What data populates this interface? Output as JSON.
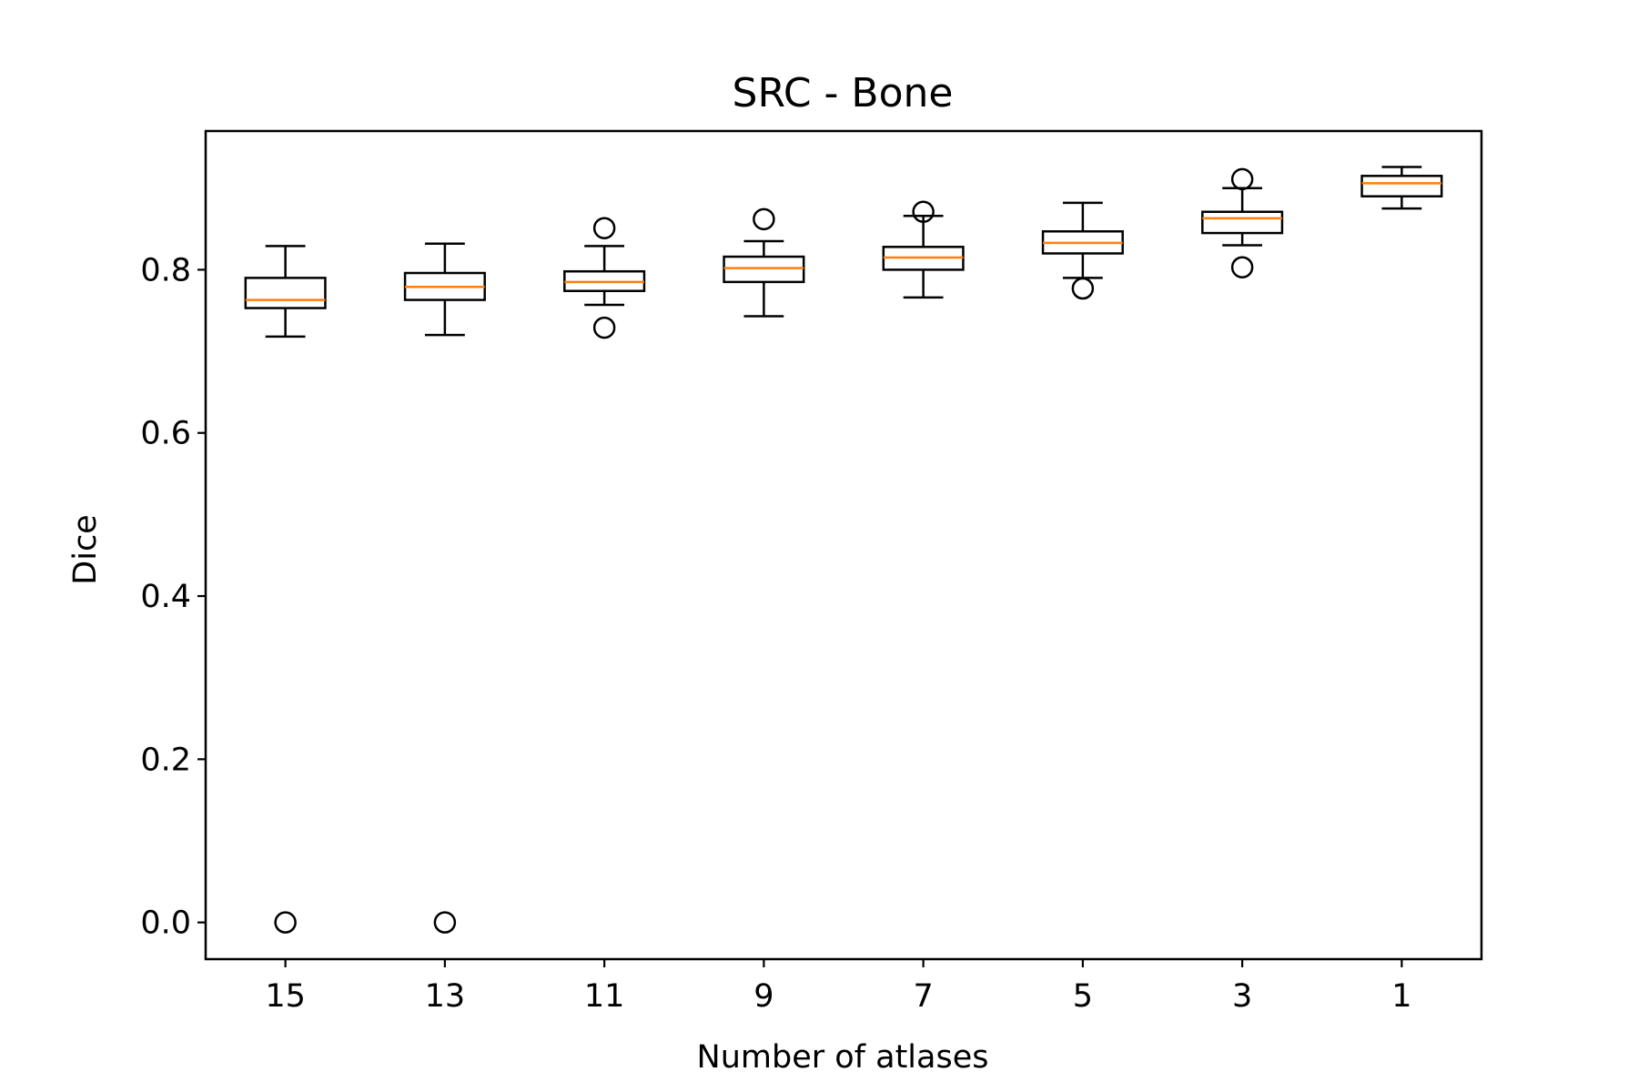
{
  "chart_data": {
    "type": "box",
    "title": "SRC - Bone",
    "xlabel": "Number of atlases",
    "ylabel": "Dice",
    "ylim": [
      -0.045,
      0.97
    ],
    "yticks": [
      0.0,
      0.2,
      0.4,
      0.6,
      0.8
    ],
    "yticklabels": [
      "0.0",
      "0.2",
      "0.4",
      "0.6",
      "0.8"
    ],
    "categories": [
      "15",
      "13",
      "11",
      "9",
      "7",
      "5",
      "3",
      "1"
    ],
    "grid": false,
    "colors": {
      "box": "#000000",
      "median": "#ff7f0e",
      "background": "#ffffff"
    },
    "boxes": [
      {
        "label": "15",
        "whisker_low": 0.718,
        "q1": 0.753,
        "median": 0.763,
        "q3": 0.79,
        "whisker_high": 0.829,
        "fliers": [
          0.0
        ]
      },
      {
        "label": "13",
        "whisker_low": 0.72,
        "q1": 0.763,
        "median": 0.779,
        "q3": 0.796,
        "whisker_high": 0.832,
        "fliers": [
          0.0
        ]
      },
      {
        "label": "11",
        "whisker_low": 0.757,
        "q1": 0.774,
        "median": 0.785,
        "q3": 0.798,
        "whisker_high": 0.829,
        "fliers": [
          0.851,
          0.729
        ]
      },
      {
        "label": "9",
        "whisker_low": 0.743,
        "q1": 0.785,
        "median": 0.802,
        "q3": 0.816,
        "whisker_high": 0.835,
        "fliers": [
          0.862
        ]
      },
      {
        "label": "7",
        "whisker_low": 0.766,
        "q1": 0.8,
        "median": 0.815,
        "q3": 0.828,
        "whisker_high": 0.866,
        "fliers": [
          0.871
        ]
      },
      {
        "label": "5",
        "whisker_low": 0.79,
        "q1": 0.82,
        "median": 0.833,
        "q3": 0.847,
        "whisker_high": 0.882,
        "fliers": [
          0.777
        ]
      },
      {
        "label": "3",
        "whisker_low": 0.83,
        "q1": 0.845,
        "median": 0.863,
        "q3": 0.871,
        "whisker_high": 0.9,
        "fliers": [
          0.911,
          0.803
        ]
      },
      {
        "label": "1",
        "whisker_low": 0.875,
        "q1": 0.89,
        "median": 0.906,
        "q3": 0.915,
        "whisker_high": 0.926,
        "fliers": []
      }
    ]
  }
}
